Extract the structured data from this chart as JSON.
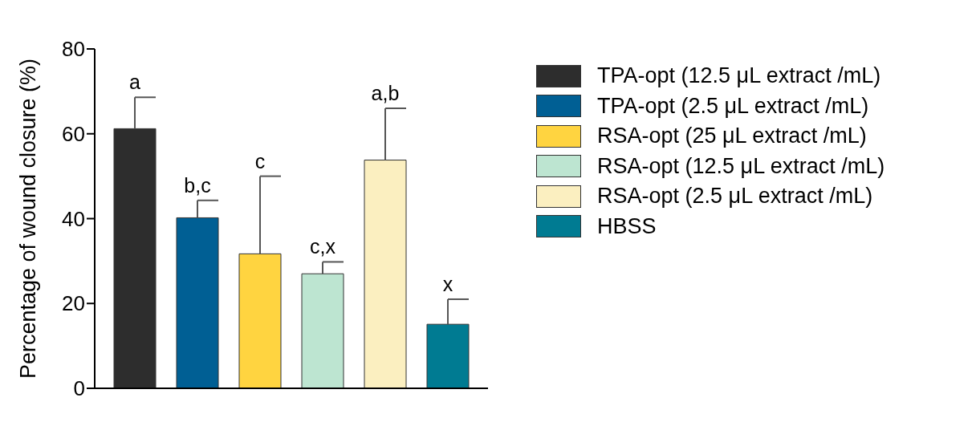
{
  "chart_data": {
    "type": "bar",
    "ylabel": "Percentage of wound closure (%)",
    "categories": [
      null
    ],
    "series": [
      {
        "name": "TPA-opt (12.5 μL extract /mL)",
        "color": "#2d2d2d",
        "values": [
          61.2
        ],
        "errors": [
          [
            61.2,
            68.6
          ]
        ]
      },
      {
        "name": "TPA-opt (2.5 μL extract /mL)",
        "color": "#005f94",
        "values": [
          40.2
        ],
        "errors": [
          [
            40.2,
            44.3
          ]
        ]
      },
      {
        "name": "RSA-opt (25 μL extract /mL)",
        "color": "#ffd440",
        "values": [
          31.7
        ],
        "errors": [
          [
            31.7,
            50
          ]
        ]
      },
      {
        "name": "RSA-opt (12.5 μL extract /mL)",
        "color": "#bde5d1",
        "values": [
          27
        ],
        "errors": [
          [
            27,
            29.8
          ]
        ]
      },
      {
        "name": "RSA-opt (2.5 μL extract /mL)",
        "color": "#fbefc0",
        "values": [
          53.8
        ],
        "errors": [
          [
            53.8,
            66
          ]
        ]
      },
      {
        "name": "HBSS",
        "color": "#007b92",
        "values": [
          15.1
        ],
        "errors": [
          [
            15.1,
            21
          ]
        ]
      }
    ],
    "annotations": [
      {
        "text": "a",
        "y": 68.6
      },
      {
        "text": "b,c",
        "y": 44.3
      },
      {
        "text": "c",
        "y": 50
      },
      {
        "text": "c,x",
        "y": 29.8
      },
      {
        "text": "a,b",
        "y": 66
      },
      {
        "text": "x",
        "y": 21
      }
    ],
    "ylim": [
      0,
      80
    ],
    "yticks": [
      0,
      20,
      40,
      60,
      80
    ],
    "grid": false,
    "legend": "right",
    "tick_labels": "y"
  }
}
